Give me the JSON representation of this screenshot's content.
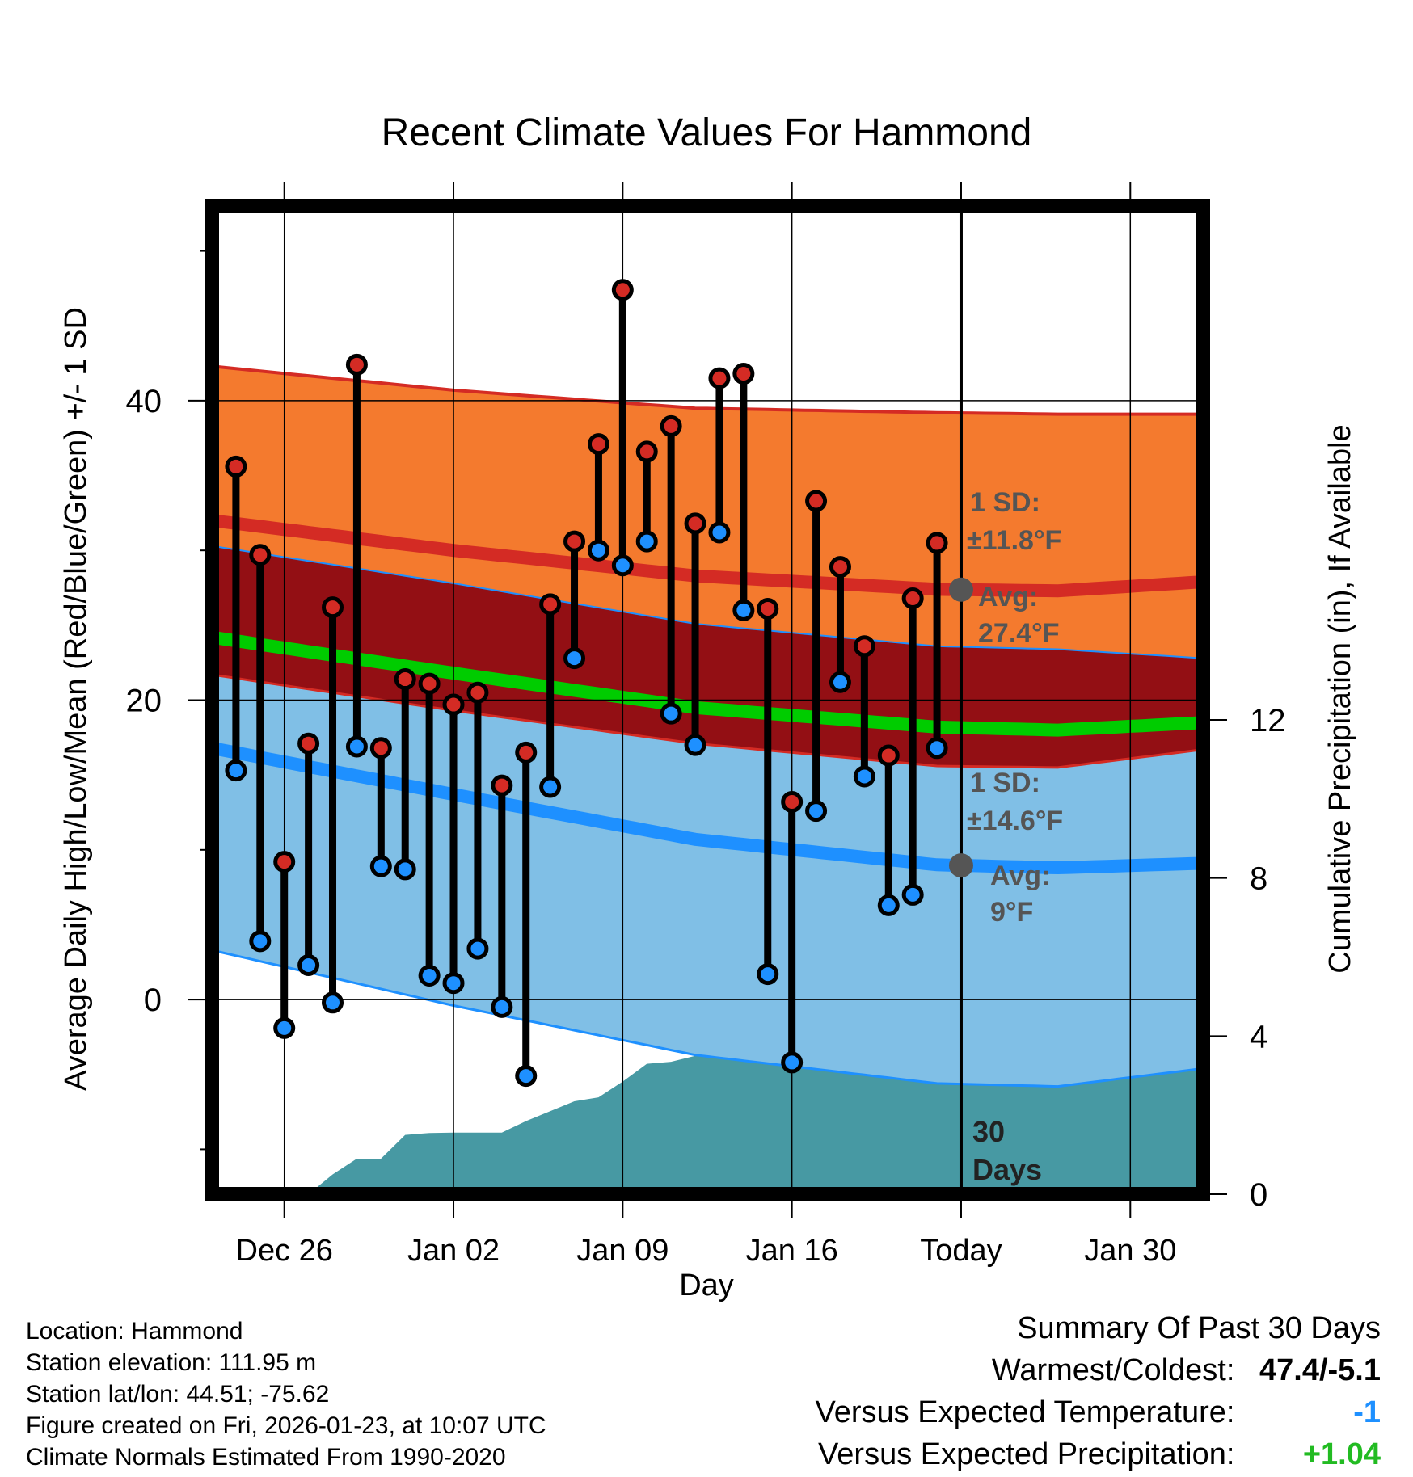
{
  "chart_data": {
    "type": "line",
    "title": "Recent Climate Values For Hammond",
    "xlabel": "Day",
    "ylabel": "Average Daily High/Low/Mean (Red/Blue/Green) +/- 1 SD",
    "y2label": "Cumulative Precipitation (in), If Available",
    "x_ticks": [
      "Dec 26",
      "Jan 02",
      "Jan 09",
      "Jan 16",
      "Today",
      "Jan 30"
    ],
    "x_tick_days": [
      3,
      10,
      17,
      24,
      31,
      38
    ],
    "x_range": [
      0,
      41
    ],
    "ylim": [
      -13,
      53
    ],
    "y_ticks": [
      0,
      20,
      40
    ],
    "y2lim": [
      0,
      25
    ],
    "y2_ticks": [
      0,
      4,
      8,
      12
    ],
    "today_day": 31,
    "observations": {
      "days": [
        1,
        2,
        3,
        4,
        5,
        6,
        7,
        8,
        9,
        10,
        11,
        12,
        13,
        14,
        15,
        16,
        17,
        18,
        19,
        20,
        21,
        22,
        23,
        24,
        25,
        26,
        27,
        28,
        29,
        30
      ],
      "highs": [
        35.6,
        29.7,
        9.2,
        17.1,
        26.2,
        42.4,
        16.8,
        21.4,
        21.1,
        19.7,
        20.5,
        14.3,
        16.5,
        26.4,
        30.6,
        37.1,
        47.4,
        36.6,
        38.3,
        31.8,
        41.5,
        41.8,
        26.1,
        13.2,
        33.3,
        28.9,
        23.6,
        16.3,
        26.8,
        30.5
      ],
      "lows": [
        15.3,
        3.9,
        -1.9,
        2.3,
        -0.2,
        16.9,
        8.9,
        8.7,
        1.6,
        1.1,
        3.4,
        -0.5,
        -5.1,
        14.2,
        22.8,
        30.0,
        29.0,
        30.6,
        19.1,
        17.0,
        31.2,
        26.0,
        1.7,
        -4.2,
        12.6,
        21.2,
        14.9,
        6.3,
        7.0,
        16.8
      ]
    },
    "normals": {
      "days": [
        0,
        10,
        20,
        30,
        35,
        41
      ],
      "high_avg": [
        32.0,
        30.0,
        28.3,
        27.4,
        27.3,
        27.9
      ],
      "high_sd": [
        10.3,
        10.7,
        11.2,
        11.8,
        11.8,
        11.2
      ],
      "low_avg": [
        16.8,
        13.7,
        10.7,
        9.0,
        8.8,
        9.1
      ],
      "low_sd": [
        13.5,
        14.1,
        14.4,
        14.6,
        14.6,
        13.7
      ],
      "mean_avg": [
        24.2,
        21.8,
        19.5,
        18.2,
        18.0,
        18.5
      ]
    },
    "precip": {
      "days": [
        4,
        5,
        6,
        7,
        8,
        9,
        10,
        11,
        12,
        13,
        14,
        15,
        16,
        17,
        18,
        19,
        20,
        21,
        22,
        23,
        24,
        25,
        26,
        27,
        28,
        29,
        30,
        31,
        41
      ],
      "cumulative": [
        0,
        0.5,
        0.9,
        0.9,
        1.5,
        1.55,
        1.56,
        1.56,
        1.56,
        1.85,
        2.1,
        2.35,
        2.45,
        2.85,
        3.3,
        3.35,
        3.5,
        3.6,
        3.65,
        4.3,
        4.45,
        4.6,
        4.62,
        4.64,
        4.64,
        4.7,
        4.9,
        4.9,
        4.9
      ]
    },
    "annotations": {
      "high_sd": "1 SD:",
      "high_sd_value": "±11.8°F",
      "high_avg": "Avg:",
      "high_avg_value": "27.4°F",
      "low_sd": "1 SD:",
      "low_sd_value": "±14.6°F",
      "low_avg": "Avg:",
      "low_avg_value": "9°F",
      "window_count": "30",
      "window_unit": "Days"
    },
    "colors": {
      "high_band": "#f47a2e",
      "high_line": "#d42b24",
      "overlap_band": "#930f14",
      "mean_line": "#00cc00",
      "low_band": "#80bfe6",
      "low_line": "#1e90ff",
      "precip": "#4799a3",
      "high_dot": "#d42b24",
      "low_dot": "#1e90ff",
      "marker": "#555555"
    }
  },
  "info": {
    "location": "Location: Hammond",
    "elevation": "Station elevation: 111.95 m",
    "latlon": "Station lat/lon: 44.51; -75.62",
    "created": "Figure created on Fri, 2026-01-23, at 10:07 UTC",
    "normals": "Climate Normals Estimated From 1990-2020"
  },
  "summary": {
    "title": "Summary Of Past 30 Days",
    "warmest_label": "Warmest/Coldest:",
    "warmest_value": "47.4/-5.1",
    "temp_label": "Versus Expected Temperature:",
    "temp_value": "-1",
    "temp_color": "#1e90ff",
    "precip_label": "Versus Expected Precipitation:",
    "precip_value": "+1.04",
    "precip_color": "#22bb22"
  }
}
